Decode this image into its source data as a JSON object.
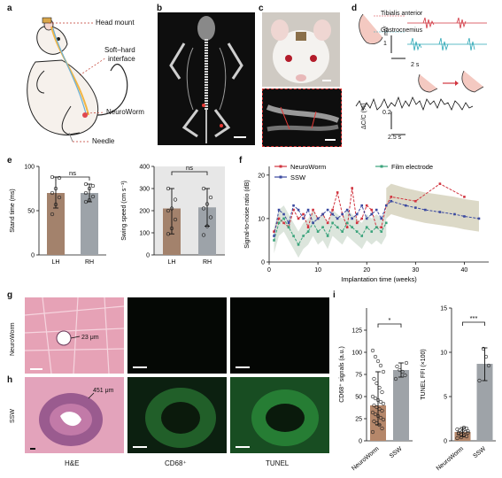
{
  "panels": {
    "a": {
      "letter": "a",
      "labels": {
        "head_mount": "Head mount",
        "interface": "Soft–hard\ninterface",
        "interface_1": "Soft–hard",
        "interface_2": "interface",
        "neuroworm": "NeuroWorm",
        "needle": "Needle"
      }
    },
    "b": {
      "letter": "b"
    },
    "c": {
      "letter": "c"
    },
    "d": {
      "letter": "d",
      "tibialis": "Tibialis anterior",
      "gastrocnemius": "Gastrocnemius",
      "scale_mv": "mV",
      "scale_mv_val": "1",
      "scale_time_top": "2 s",
      "scale_dcc": "ΔC/C (%)",
      "scale_dcc_val": "0.2",
      "scale_time_bottom": "2.5 s"
    },
    "e": {
      "letter": "e",
      "colors": {
        "LH": "#a3826c",
        "RH": "#9da3a9"
      }
    },
    "f": {
      "letter": "f"
    },
    "g": {
      "letter": "g",
      "row_label": "NeuroWorm",
      "annotation": "23 μm"
    },
    "h": {
      "letter": "h",
      "row_label": "SSW",
      "annotation": "451 μm",
      "col_labels": [
        "H&E",
        "CD68⁺",
        "TUNEL"
      ]
    },
    "i": {
      "letter": "i"
    }
  },
  "chart_data": [
    {
      "id": "e-left",
      "type": "bar",
      "ylabel": "Stand time (ms)",
      "categories": [
        "LH",
        "RH"
      ],
      "values": [
        70,
        70
      ],
      "error": [
        [
          53,
          88
        ],
        [
          60,
          80
        ]
      ],
      "points": [
        [
          46,
          57,
          65,
          70,
          75,
          87,
          88
        ],
        [
          60,
          62,
          66,
          70,
          75,
          78,
          80
        ]
      ],
      "ylim": [
        0,
        100
      ],
      "yticks": [
        0,
        50,
        100
      ],
      "annotation": "ns"
    },
    {
      "id": "e-right",
      "type": "bar",
      "ylabel": "Swing speed (cm s⁻¹)",
      "categories": [
        "LH",
        "RH"
      ],
      "values": [
        210,
        215
      ],
      "error": [
        [
          95,
          300
        ],
        [
          130,
          300
        ]
      ],
      "points": [
        [
          95,
          120,
          160,
          200,
          210,
          250,
          300
        ],
        [
          90,
          130,
          170,
          210,
          230,
          260,
          300
        ]
      ],
      "ylim": [
        0,
        400
      ],
      "yticks": [
        0,
        100,
        200,
        300,
        400
      ],
      "annotation": "ns"
    },
    {
      "id": "f",
      "type": "line",
      "xlabel": "Implantation time (weeks)",
      "ylabel": "Signal-to-noise ratio (dB)",
      "xlim": [
        0,
        45
      ],
      "ylim": [
        0,
        22
      ],
      "xticks": [
        0,
        10,
        20,
        30,
        40
      ],
      "yticks": [
        0,
        10,
        20
      ],
      "series": [
        {
          "name": "NeuroWorm",
          "color": "#d1343f",
          "x": [
            1,
            2,
            3,
            4,
            5,
            6,
            7,
            8,
            9,
            10,
            11,
            12,
            13,
            14,
            15,
            16,
            17,
            18,
            19,
            20,
            21,
            22,
            23,
            24,
            25,
            30,
            35,
            40
          ],
          "y": [
            7,
            10,
            9,
            8,
            12,
            10,
            11,
            8,
            12,
            10,
            11,
            9,
            12,
            16,
            11,
            8,
            17,
            9,
            10,
            13,
            12,
            8,
            8,
            13,
            15,
            14,
            18,
            15
          ]
        },
        {
          "name": "Film electrode",
          "color": "#3aa37b",
          "x": [
            1,
            2,
            3,
            4,
            5,
            6,
            7,
            8,
            9,
            10,
            11,
            12,
            13,
            14,
            15,
            16,
            17,
            18,
            19,
            20,
            21,
            22,
            23,
            24
          ],
          "y": [
            5,
            9,
            10,
            8,
            6,
            4,
            6,
            7,
            9,
            7,
            8,
            6,
            9,
            8,
            7,
            9,
            8,
            7,
            6,
            8,
            7,
            8,
            7,
            9
          ]
        },
        {
          "name": "SSW",
          "color": "#3b4aa0",
          "x": [
            1,
            2,
            3,
            4,
            5,
            6,
            7,
            8,
            9,
            10,
            11,
            12,
            13,
            14,
            15,
            16,
            17,
            18,
            19,
            20,
            21,
            22,
            23,
            24,
            25,
            28,
            30,
            32,
            35,
            38,
            40,
            43
          ],
          "y": [
            6,
            12,
            11,
            9,
            13,
            12,
            10,
            12,
            9,
            10,
            11,
            12,
            11,
            10,
            11,
            12,
            10,
            11,
            13,
            10,
            11,
            12,
            10,
            13,
            14,
            13,
            12.5,
            12,
            11.5,
            11,
            10.5,
            10
          ]
        }
      ]
    },
    {
      "id": "i-left",
      "type": "bar",
      "ylabel": "CD68⁺ signals (a.u.)",
      "categories": [
        "NeuroWorm",
        "SSW"
      ],
      "values": [
        40,
        80
      ],
      "error": [
        [
          18,
          78
        ],
        [
          72,
          88
        ]
      ],
      "ylim": [
        0,
        150
      ],
      "yticks": [
        0,
        25,
        50,
        75,
        100,
        125
      ],
      "annotation": "*"
    },
    {
      "id": "i-right",
      "type": "bar",
      "ylabel": "TUNEL FFI (×100)",
      "categories": [
        "NeuroWorm",
        "SSW"
      ],
      "values": [
        1,
        8.7
      ],
      "error": [
        [
          0.5,
          1.5
        ],
        [
          6.8,
          10.5
        ]
      ],
      "ylim": [
        0,
        15
      ],
      "yticks": [
        0,
        5,
        10,
        15
      ],
      "annotation": "***"
    }
  ]
}
